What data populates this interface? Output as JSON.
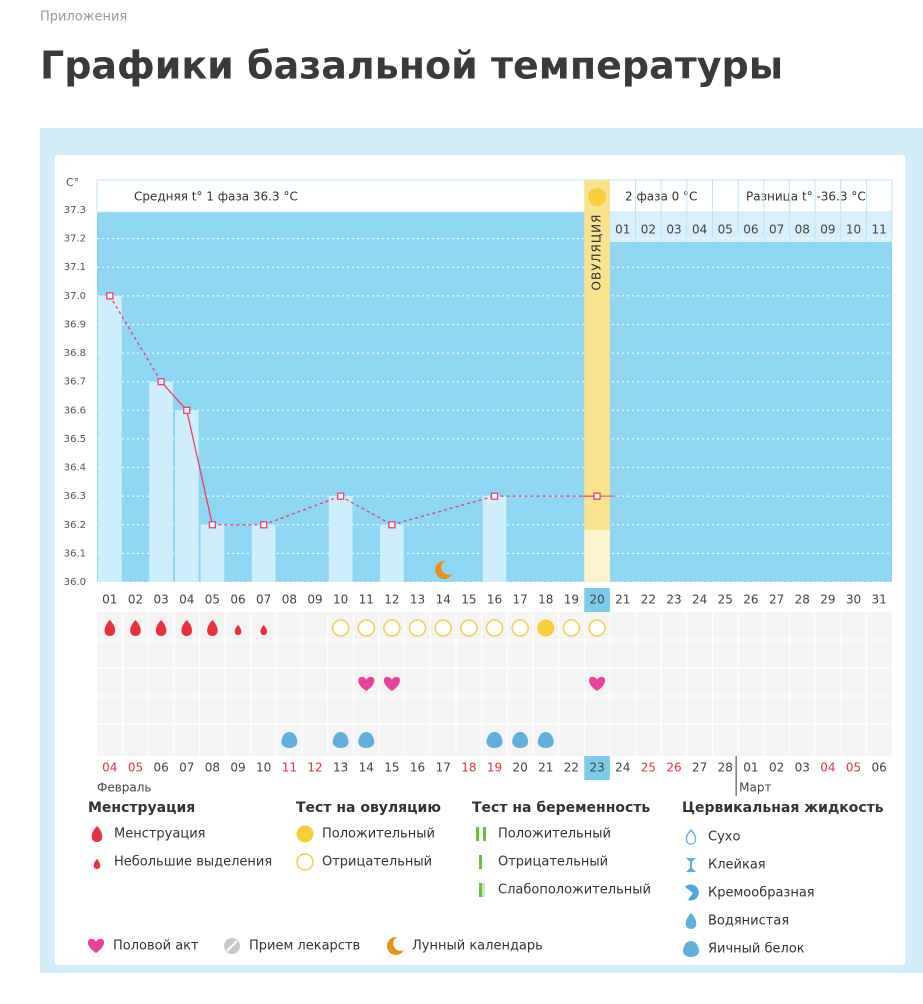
{
  "breadcrumb": "Приложения",
  "title": "Графики базальной температуры",
  "chart_data": {
    "type": "bar",
    "y_unit": "C°",
    "phase1_label": "Средняя t° 1 фаза 36.3 °C",
    "phase2_label": "2 фаза 0 °C",
    "difference_label": "Разница t° -36.3 °C",
    "ovulation_label": "ОВУЛЯЦИЯ",
    "ovulation_index": 19,
    "ylim": [
      36.0,
      37.3
    ],
    "yticks": [
      {
        "value": 36.0,
        "label": "36.0"
      },
      36.1,
      36.2,
      36.3,
      36.4,
      36.5,
      36.6,
      36.7,
      36.8,
      36.9,
      {
        "value": 37.0,
        "label": "37.0"
      },
      37.1,
      37.2,
      37.3
    ],
    "grid": true,
    "color": "#e8416e",
    "categories": [
      "01",
      "02",
      "03",
      "04",
      "05",
      "06",
      "07",
      "08",
      "09",
      "10",
      "11",
      "12",
      "13",
      "14",
      "15",
      "16",
      "17",
      "18",
      "19",
      "20",
      "21",
      "22",
      "23",
      "24",
      "25",
      "26",
      "27",
      "28",
      "29",
      "30",
      "31"
    ],
    "values": [
      37.0,
      null,
      36.7,
      36.6,
      36.2,
      null,
      36.2,
      null,
      null,
      36.3,
      null,
      36.2,
      null,
      null,
      null,
      36.3,
      null,
      null,
      null,
      36.3,
      null,
      null,
      null,
      null,
      null,
      null,
      null,
      null,
      null,
      null,
      null
    ],
    "phase2_days": [
      "01",
      "02",
      "03",
      "04",
      "05",
      "06",
      "07",
      "08",
      "09",
      "10",
      "11"
    ],
    "dates": [
      "04",
      "05",
      "06",
      "07",
      "08",
      "09",
      "10",
      "11",
      "12",
      "13",
      "14",
      "15",
      "16",
      "17",
      "18",
      "19",
      "20",
      "21",
      "22",
      "23",
      "24",
      "25",
      "26",
      "27",
      "28",
      "01",
      "02",
      "03",
      "04",
      "05",
      "06"
    ],
    "weekend": [
      true,
      true,
      false,
      false,
      false,
      false,
      false,
      true,
      true,
      false,
      false,
      false,
      false,
      false,
      true,
      true,
      false,
      false,
      false,
      false,
      false,
      true,
      true,
      false,
      false,
      false,
      false,
      false,
      true,
      true,
      false
    ],
    "months": [
      "Февраль",
      "Март"
    ],
    "moon_index": 13,
    "menstruation": [
      0,
      0,
      0,
      0,
      0,
      1,
      1,
      null,
      null,
      null,
      null,
      null,
      null,
      null,
      null,
      null,
      null,
      null,
      null,
      null,
      null,
      null,
      null,
      null,
      null,
      null,
      null,
      null,
      null,
      null,
      null
    ],
    "ovulation_test": [
      null,
      null,
      null,
      null,
      null,
      null,
      null,
      null,
      null,
      1,
      1,
      1,
      1,
      1,
      1,
      1,
      1,
      0,
      1,
      1,
      null,
      null,
      null,
      null,
      null,
      null,
      null,
      null,
      null,
      null,
      null
    ],
    "intercourse": [
      null,
      null,
      null,
      null,
      null,
      null,
      null,
      null,
      null,
      null,
      0,
      0,
      null,
      null,
      null,
      null,
      null,
      null,
      null,
      0,
      null,
      null,
      null,
      null,
      null,
      null,
      null,
      null,
      null,
      null,
      null
    ],
    "cervical_fluid": [
      null,
      null,
      null,
      null,
      null,
      null,
      null,
      4,
      null,
      4,
      4,
      null,
      null,
      null,
      null,
      4,
      4,
      4,
      null,
      null,
      null,
      null,
      null,
      null,
      null,
      null,
      null,
      null,
      null,
      null,
      null
    ],
    "legend": [
      {
        "title": "Менструация",
        "items": [
          "Менструация",
          "Небольшие выделения"
        ]
      },
      {
        "title": "Тест на овуляцию",
        "items": [
          "Положительный",
          "Отрицательный"
        ]
      },
      {
        "title": "Тест на беременность",
        "items": [
          "Положительный",
          "Отрицательный",
          "Слабоположительный"
        ]
      },
      {
        "title": "Цервикальная жидкость",
        "items": [
          "Сухо",
          "Клейкая",
          "Кремообразная",
          "Водянистая",
          "Яичный белок"
        ]
      }
    ],
    "extras": [
      "Половой акт",
      "Прием лекарств",
      "Лунный календарь"
    ]
  }
}
